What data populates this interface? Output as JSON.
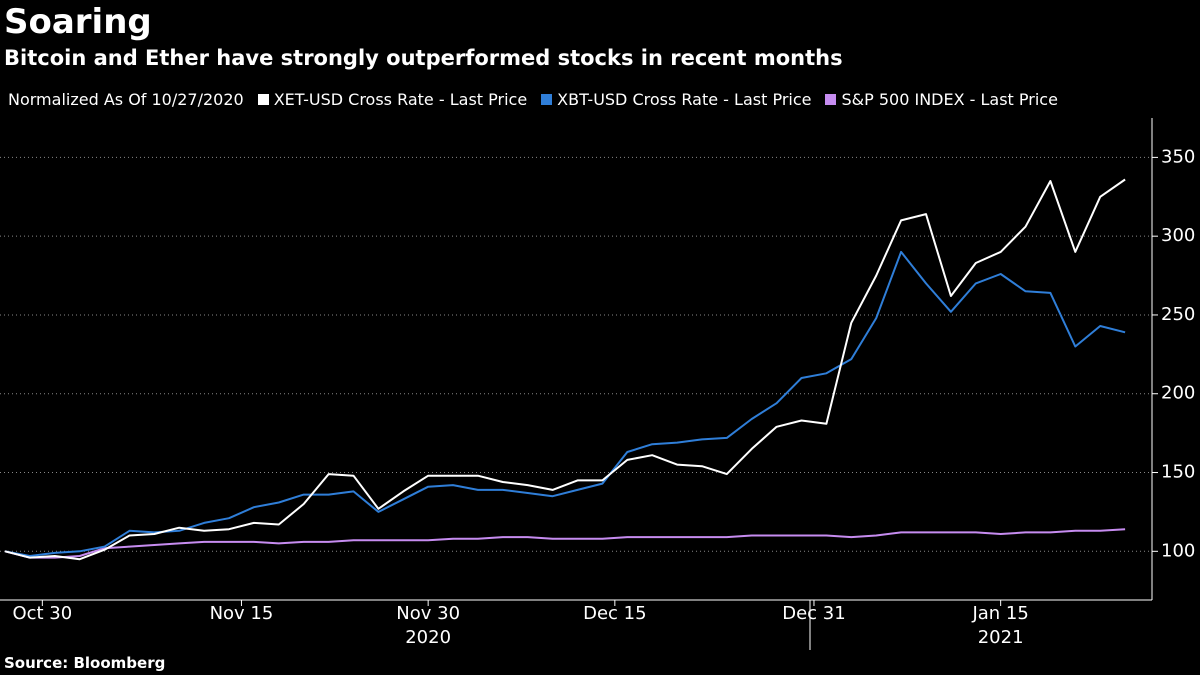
{
  "chart_data": {
    "type": "line",
    "title": "Soaring",
    "subtitle": "Bitcoin and Ether have strongly outperformed stocks in recent months",
    "legend_note": "Normalized As Of 10/27/2020",
    "source": "Source: Bloomberg",
    "x": [
      "2020-10-27",
      "2020-10-29",
      "2020-10-31",
      "2020-11-02",
      "2020-11-04",
      "2020-11-06",
      "2020-11-08",
      "2020-11-10",
      "2020-11-12",
      "2020-11-14",
      "2020-11-16",
      "2020-11-18",
      "2020-11-20",
      "2020-11-22",
      "2020-11-24",
      "2020-11-26",
      "2020-11-28",
      "2020-11-30",
      "2020-12-02",
      "2020-12-04",
      "2020-12-06",
      "2020-12-08",
      "2020-12-10",
      "2020-12-12",
      "2020-12-14",
      "2020-12-16",
      "2020-12-18",
      "2020-12-20",
      "2020-12-22",
      "2020-12-24",
      "2020-12-26",
      "2020-12-28",
      "2020-12-30",
      "2021-01-01",
      "2021-01-03",
      "2021-01-05",
      "2021-01-07",
      "2021-01-09",
      "2021-01-11",
      "2021-01-13",
      "2021-01-15",
      "2021-01-17",
      "2021-01-19",
      "2021-01-21",
      "2021-01-23",
      "2021-01-25"
    ],
    "series": [
      {
        "name": "XET-USD Cross Rate - Last Price",
        "color": "#ffffff",
        "values": [
          100,
          96,
          97,
          95,
          101,
          110,
          111,
          115,
          113,
          114,
          118,
          117,
          130,
          149,
          148,
          127,
          138,
          148,
          148,
          148,
          144,
          142,
          139,
          145,
          145,
          158,
          161,
          155,
          154,
          149,
          165,
          179,
          183,
          181,
          245,
          275,
          310,
          314,
          262,
          283,
          290,
          306,
          335,
          290,
          325,
          336
        ]
      },
      {
        "name": "XBT-USD Cross Rate - Last Price",
        "color": "#2f7ed8",
        "values": [
          100,
          97,
          99,
          100,
          103,
          113,
          112,
          113,
          118,
          121,
          128,
          131,
          136,
          136,
          138,
          125,
          133,
          141,
          142,
          139,
          139,
          137,
          135,
          139,
          143,
          163,
          168,
          169,
          171,
          172,
          184,
          194,
          210,
          213,
          222,
          248,
          290,
          270,
          252,
          270,
          276,
          265,
          264,
          230,
          243,
          239
        ]
      },
      {
        "name": "S&P 500 INDEX - Last Price",
        "color": "#c68cf0",
        "values": [
          100,
          96,
          96,
          97,
          102,
          103,
          104,
          105,
          106,
          106,
          106,
          105,
          106,
          106,
          107,
          107,
          107,
          107,
          108,
          108,
          109,
          109,
          108,
          108,
          108,
          109,
          109,
          109,
          109,
          109,
          110,
          110,
          110,
          110,
          109,
          110,
          112,
          112,
          112,
          112,
          111,
          112,
          112,
          113,
          113,
          114
        ]
      }
    ],
    "xlim": [
      "2020-10-27",
      "2021-01-27"
    ],
    "xticks": [
      {
        "value": "2020-10-30",
        "label": "Oct 30"
      },
      {
        "value": "2020-11-15",
        "label": "Nov 15"
      },
      {
        "value": "2020-11-30",
        "label": "Nov 30"
      },
      {
        "value": "2020-12-15",
        "label": "Dec 15"
      },
      {
        "value": "2020-12-31",
        "label": "Dec 31"
      },
      {
        "value": "2021-01-15",
        "label": "Jan 15"
      }
    ],
    "xgroups": [
      {
        "value": "2020-11-30",
        "label": "2020"
      },
      {
        "value": "2021-01-15",
        "label": "2021"
      }
    ],
    "ylim": [
      71,
      375
    ],
    "yticks": [
      100,
      150,
      200,
      250,
      300,
      350
    ],
    "grid": true
  }
}
